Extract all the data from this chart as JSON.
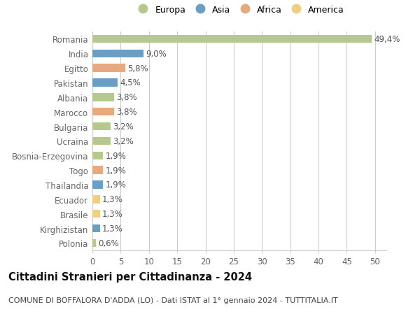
{
  "countries": [
    "Romania",
    "India",
    "Egitto",
    "Pakistan",
    "Albania",
    "Marocco",
    "Bulgaria",
    "Ucraina",
    "Bosnia-Erzegovina",
    "Togo",
    "Thailandia",
    "Ecuador",
    "Brasile",
    "Kirghizistan",
    "Polonia"
  ],
  "values": [
    49.4,
    9.0,
    5.8,
    4.5,
    3.8,
    3.8,
    3.2,
    3.2,
    1.9,
    1.9,
    1.9,
    1.3,
    1.3,
    1.3,
    0.6
  ],
  "labels": [
    "49,4%",
    "9,0%",
    "5,8%",
    "4,5%",
    "3,8%",
    "3,8%",
    "3,2%",
    "3,2%",
    "1,9%",
    "1,9%",
    "1,9%",
    "1,3%",
    "1,3%",
    "1,3%",
    "0,6%"
  ],
  "continents": [
    "Europa",
    "Asia",
    "Africa",
    "Asia",
    "Europa",
    "Africa",
    "Europa",
    "Europa",
    "Europa",
    "Africa",
    "Asia",
    "America",
    "America",
    "Asia",
    "Europa"
  ],
  "continent_colors": {
    "Europa": "#b5c98e",
    "Asia": "#6a9ec5",
    "Africa": "#e8a97e",
    "America": "#f0d080"
  },
  "legend_order": [
    "Europa",
    "Asia",
    "Africa",
    "America"
  ],
  "xlim": [
    0,
    52
  ],
  "xticks": [
    0,
    5,
    10,
    15,
    20,
    25,
    30,
    35,
    40,
    45,
    50
  ],
  "title": "Cittadini Stranieri per Cittadinanza - 2024",
  "subtitle": "COMUNE DI BOFFALORA D'ADDA (LO) - Dati ISTAT al 1° gennaio 2024 - TUTTITALIA.IT",
  "bg_color": "#ffffff",
  "grid_color": "#cccccc",
  "bar_height": 0.55,
  "label_fontsize": 8.5,
  "tick_fontsize": 8.5,
  "title_fontsize": 10.5,
  "subtitle_fontsize": 8
}
